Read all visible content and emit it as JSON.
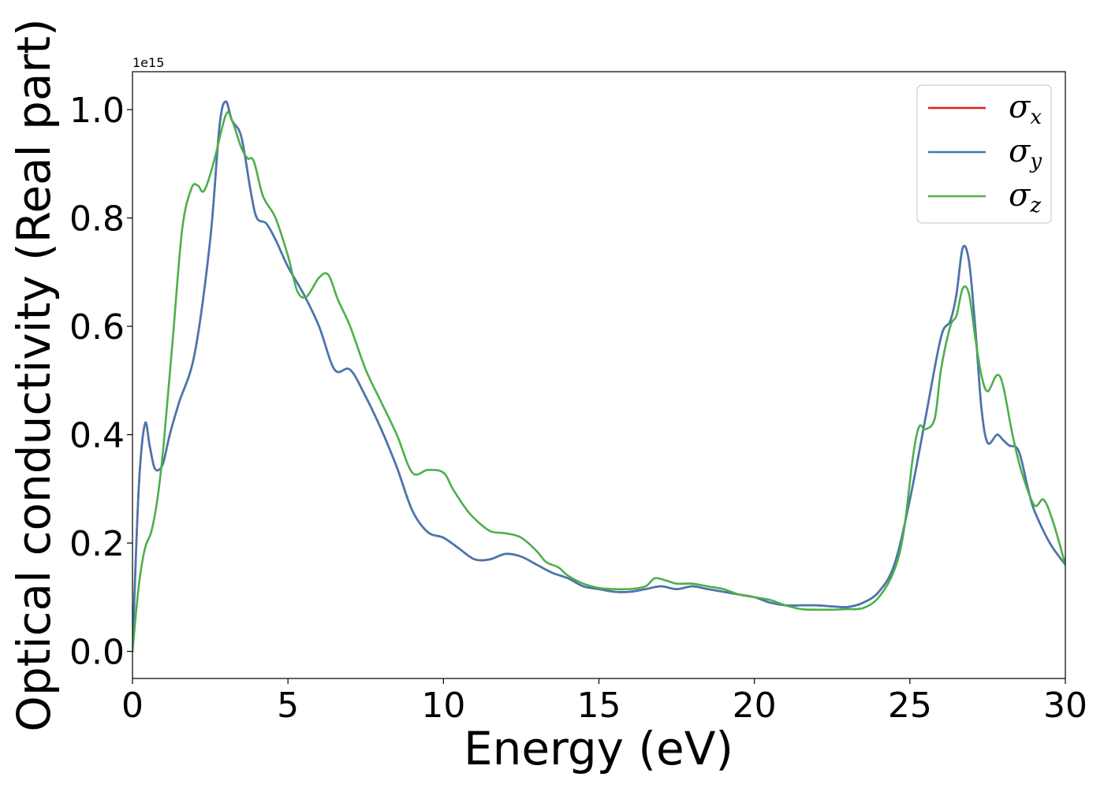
{
  "chart_data": {
    "type": "line",
    "xlabel": "Energy (eV)",
    "ylabel": "Optical conductivity (Real part)",
    "y_offset_label": "1e15",
    "xlim": [
      0,
      30
    ],
    "ylim": [
      -0.05,
      1.07
    ],
    "x_ticks": [
      0,
      5,
      10,
      15,
      20,
      25,
      30
    ],
    "x_tick_labels": [
      "0",
      "5",
      "10",
      "15",
      "20",
      "25",
      "30"
    ],
    "y_ticks": [
      0.0,
      0.2,
      0.4,
      0.6,
      0.8,
      1.0
    ],
    "y_tick_labels": [
      "0.0",
      "0.2",
      "0.4",
      "0.6",
      "0.8",
      "1.0"
    ],
    "grid": false,
    "legend_position": "top-right",
    "series": [
      {
        "name": "σx",
        "legend_base": "σ",
        "legend_sub": "x",
        "color": "#e41a1c",
        "x": [
          0,
          0.2,
          0.4,
          0.55,
          0.7,
          0.85,
          1.0,
          1.2,
          1.5,
          2.0,
          2.5,
          2.8,
          3.0,
          3.2,
          3.5,
          3.8,
          4.0,
          4.3,
          4.6,
          5.0,
          5.5,
          6.0,
          6.5,
          7.0,
          7.5,
          8.0,
          8.5,
          9.0,
          9.5,
          10.0,
          10.5,
          11.0,
          11.5,
          12.0,
          12.5,
          13.0,
          13.5,
          14.0,
          14.5,
          15.0,
          15.5,
          16.0,
          16.5,
          17.0,
          17.5,
          18.0,
          18.5,
          19.0,
          19.5,
          20.0,
          20.5,
          21.0,
          21.5,
          22.0,
          22.5,
          23.0,
          23.5,
          24.0,
          24.5,
          25.0,
          25.5,
          26.0,
          26.3,
          26.5,
          26.7,
          26.9,
          27.1,
          27.3,
          27.5,
          27.8,
          28.0,
          28.2,
          28.5,
          28.8,
          29.0,
          29.5,
          30.0
        ],
        "y": [
          0.0,
          0.3,
          0.42,
          0.38,
          0.34,
          0.335,
          0.35,
          0.4,
          0.46,
          0.55,
          0.76,
          0.97,
          1.015,
          0.98,
          0.95,
          0.85,
          0.8,
          0.79,
          0.76,
          0.71,
          0.66,
          0.6,
          0.52,
          0.52,
          0.47,
          0.41,
          0.34,
          0.26,
          0.22,
          0.21,
          0.19,
          0.17,
          0.17,
          0.18,
          0.175,
          0.16,
          0.145,
          0.135,
          0.12,
          0.115,
          0.11,
          0.11,
          0.115,
          0.12,
          0.115,
          0.12,
          0.115,
          0.11,
          0.105,
          0.1,
          0.09,
          0.085,
          0.085,
          0.085,
          0.083,
          0.082,
          0.09,
          0.11,
          0.16,
          0.28,
          0.43,
          0.58,
          0.61,
          0.66,
          0.745,
          0.72,
          0.6,
          0.45,
          0.385,
          0.4,
          0.39,
          0.38,
          0.37,
          0.3,
          0.26,
          0.2,
          0.16
        ]
      },
      {
        "name": "σy",
        "legend_base": "σ",
        "legend_sub": "y",
        "color": "#4378b3",
        "x": [
          0,
          0.2,
          0.4,
          0.55,
          0.7,
          0.85,
          1.0,
          1.2,
          1.5,
          2.0,
          2.5,
          2.8,
          3.0,
          3.2,
          3.5,
          3.8,
          4.0,
          4.3,
          4.6,
          5.0,
          5.5,
          6.0,
          6.5,
          7.0,
          7.5,
          8.0,
          8.5,
          9.0,
          9.5,
          10.0,
          10.5,
          11.0,
          11.5,
          12.0,
          12.5,
          13.0,
          13.5,
          14.0,
          14.5,
          15.0,
          15.5,
          16.0,
          16.5,
          17.0,
          17.5,
          18.0,
          18.5,
          19.0,
          19.5,
          20.0,
          20.5,
          21.0,
          21.5,
          22.0,
          22.5,
          23.0,
          23.5,
          24.0,
          24.5,
          25.0,
          25.5,
          26.0,
          26.3,
          26.5,
          26.7,
          26.9,
          27.1,
          27.3,
          27.5,
          27.8,
          28.0,
          28.2,
          28.5,
          28.8,
          29.0,
          29.5,
          30.0
        ],
        "y": [
          0.0,
          0.3,
          0.42,
          0.38,
          0.34,
          0.335,
          0.35,
          0.4,
          0.46,
          0.55,
          0.76,
          0.97,
          1.015,
          0.98,
          0.95,
          0.85,
          0.8,
          0.79,
          0.76,
          0.71,
          0.66,
          0.6,
          0.52,
          0.52,
          0.47,
          0.41,
          0.34,
          0.26,
          0.22,
          0.21,
          0.19,
          0.17,
          0.17,
          0.18,
          0.175,
          0.16,
          0.145,
          0.135,
          0.12,
          0.115,
          0.11,
          0.11,
          0.115,
          0.12,
          0.115,
          0.12,
          0.115,
          0.11,
          0.105,
          0.1,
          0.09,
          0.085,
          0.085,
          0.085,
          0.083,
          0.082,
          0.09,
          0.11,
          0.16,
          0.28,
          0.43,
          0.58,
          0.61,
          0.66,
          0.745,
          0.72,
          0.6,
          0.45,
          0.385,
          0.4,
          0.39,
          0.38,
          0.37,
          0.3,
          0.26,
          0.2,
          0.16
        ]
      },
      {
        "name": "σz",
        "legend_base": "σ",
        "legend_sub": "z",
        "color": "#4daf4a",
        "x": [
          0,
          0.2,
          0.4,
          0.6,
          0.8,
          1.0,
          1.3,
          1.6,
          1.9,
          2.1,
          2.3,
          2.6,
          3.0,
          3.2,
          3.5,
          3.7,
          3.9,
          4.2,
          4.6,
          5.0,
          5.3,
          5.6,
          6.0,
          6.3,
          6.6,
          7.0,
          7.5,
          8.0,
          8.5,
          9.0,
          9.5,
          10.0,
          10.3,
          10.7,
          11.0,
          11.5,
          12.0,
          12.5,
          13.0,
          13.3,
          13.7,
          14.0,
          14.5,
          15.0,
          15.5,
          16.0,
          16.5,
          16.8,
          17.2,
          17.5,
          18.0,
          18.5,
          19.0,
          19.5,
          20.0,
          20.5,
          21.0,
          21.5,
          22.0,
          22.5,
          23.0,
          23.5,
          24.0,
          24.5,
          24.8,
          25.1,
          25.3,
          25.5,
          25.8,
          26.0,
          26.3,
          26.5,
          26.7,
          26.9,
          27.1,
          27.3,
          27.5,
          27.8,
          28.0,
          28.3,
          28.6,
          29.0,
          29.3,
          29.6,
          30.0
        ],
        "y": [
          0.0,
          0.12,
          0.19,
          0.22,
          0.28,
          0.38,
          0.58,
          0.78,
          0.855,
          0.86,
          0.85,
          0.9,
          0.99,
          0.98,
          0.93,
          0.91,
          0.905,
          0.84,
          0.8,
          0.73,
          0.665,
          0.655,
          0.69,
          0.695,
          0.65,
          0.6,
          0.52,
          0.46,
          0.4,
          0.33,
          0.335,
          0.33,
          0.3,
          0.265,
          0.245,
          0.222,
          0.218,
          0.21,
          0.185,
          0.165,
          0.155,
          0.14,
          0.125,
          0.117,
          0.115,
          0.115,
          0.12,
          0.135,
          0.13,
          0.125,
          0.125,
          0.12,
          0.115,
          0.105,
          0.1,
          0.095,
          0.085,
          0.078,
          0.077,
          0.077,
          0.078,
          0.08,
          0.1,
          0.15,
          0.22,
          0.36,
          0.415,
          0.41,
          0.43,
          0.52,
          0.6,
          0.62,
          0.67,
          0.66,
          0.58,
          0.51,
          0.48,
          0.51,
          0.49,
          0.4,
          0.33,
          0.27,
          0.28,
          0.24,
          0.16
        ]
      }
    ]
  }
}
